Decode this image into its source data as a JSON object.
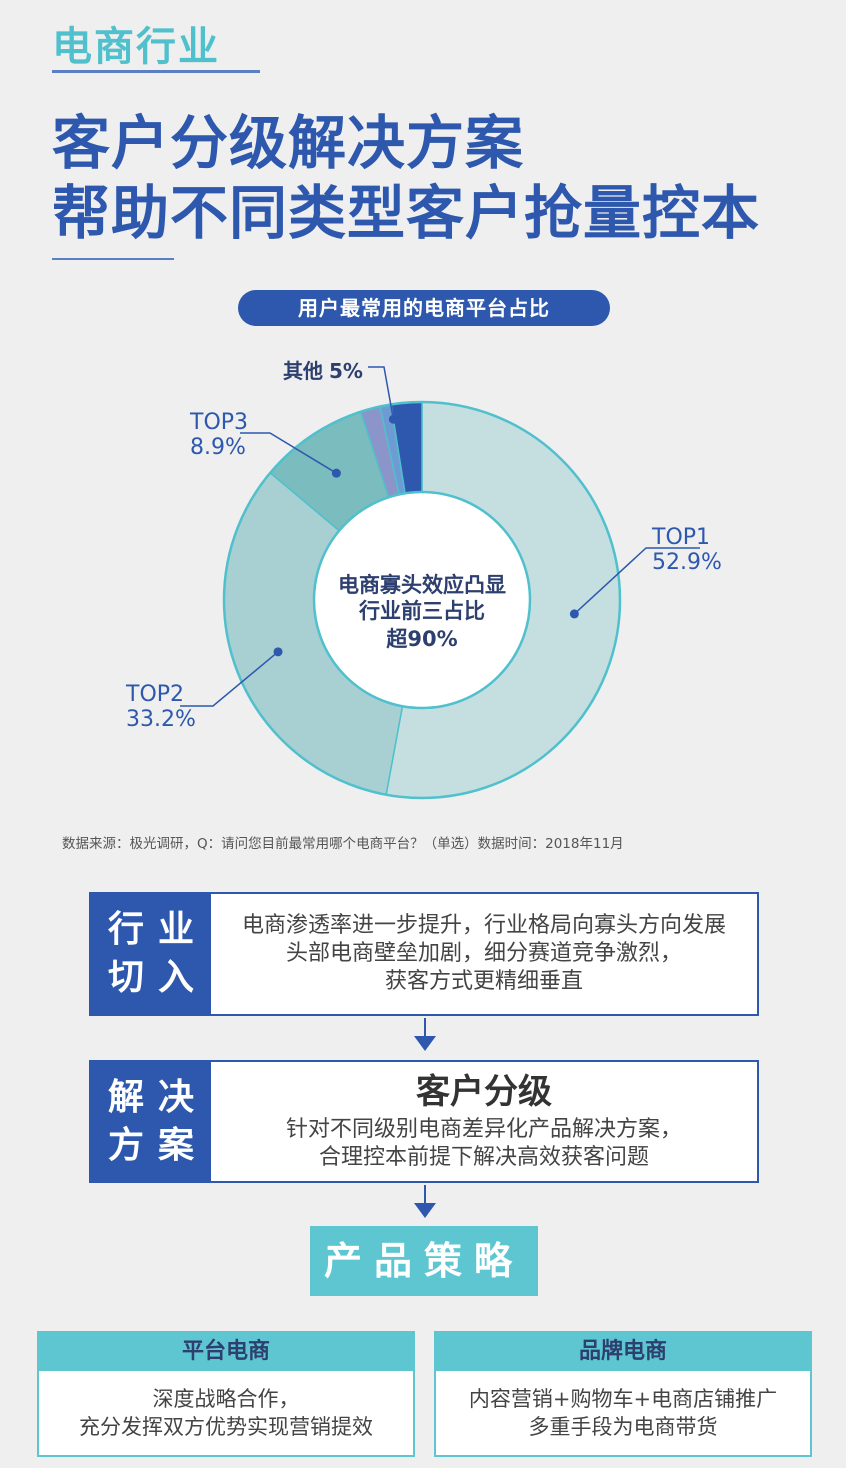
{
  "header": {
    "section_tag": "电商行业",
    "headline_line1": "客户分级解决方案",
    "headline_line2": "帮助不同类型客户抢量控本"
  },
  "chart_data": {
    "type": "pie",
    "title": "用户最常用的电商平台占比",
    "center_text": [
      "电商寡头效应凸显",
      "行业前三占比",
      "超90%"
    ],
    "series": [
      {
        "name": "TOP1",
        "value": 52.9,
        "label": "52.9%",
        "color": "#c5dfe1"
      },
      {
        "name": "TOP2",
        "value": 33.2,
        "label": "33.2%",
        "color": "#a8d0d2"
      },
      {
        "name": "TOP3",
        "value": 8.9,
        "label": "8.9%",
        "color": "#7bbcbe"
      },
      {
        "name": "其他",
        "value": 5.0,
        "label": "5%",
        "color": "#8b95c9",
        "sub_slices": [
          {
            "value": 1.6,
            "color": "#8b95c9"
          },
          {
            "value": 0.9,
            "color": "#6f9bd4"
          },
          {
            "value": 2.5,
            "color": "#2d58ad"
          }
        ]
      }
    ],
    "colors": {
      "ring_border": "#4fc0cc",
      "leader": "#2d58ad"
    }
  },
  "source_note": "数据来源：极光调研，Q：请问您目前最常用哪个电商平台？（单选）数据时间：2018年11月",
  "flow": {
    "step1": {
      "label": [
        "行业",
        "切入"
      ],
      "lines": [
        "电商渗透率进一步提升，行业格局向寡头方向发展",
        "头部电商壁垒加剧，细分赛道竞争激烈，",
        "获客方式更精细垂直"
      ]
    },
    "step2": {
      "label": [
        "解决",
        "方案"
      ],
      "title": "客户分级",
      "lines": [
        "针对不同级别电商差异化产品解决方案，",
        "合理控本前提下解决高效获客问题"
      ]
    },
    "strategy_label": "产品策略",
    "cards": [
      {
        "title": "平台电商",
        "lines": [
          "深度战略合作，",
          "充分发挥双方优势实现营销提效"
        ]
      },
      {
        "title": "品牌电商",
        "lines": [
          "内容营销+购物车+电商店铺推广",
          "多重手段为电商带货"
        ]
      }
    ]
  }
}
